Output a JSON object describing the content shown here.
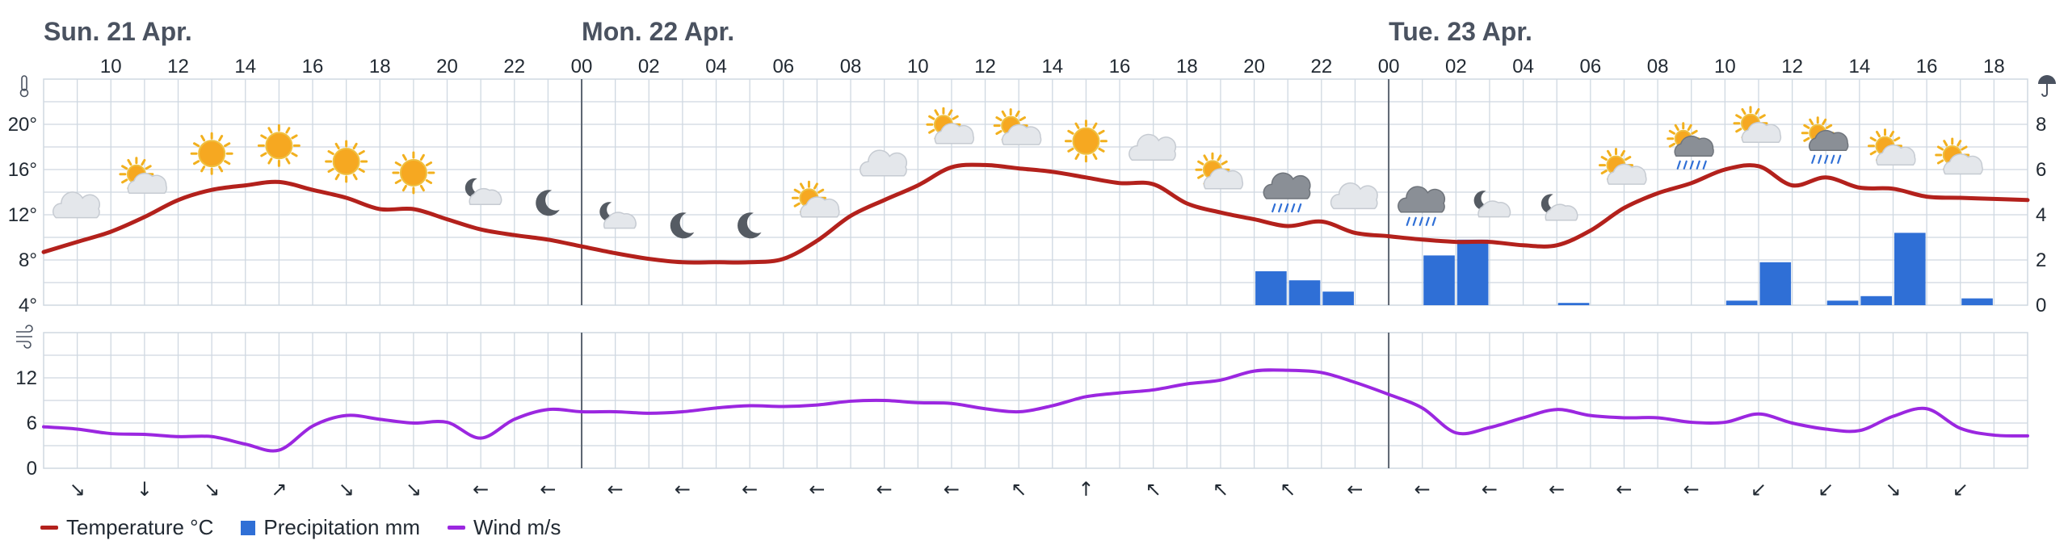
{
  "colors": {
    "temperature": "#b3211c",
    "precipitation": "#2f6fd6",
    "wind": "#9b27e0",
    "grid": "#cfd8e1",
    "day_divider": "#5b6470"
  },
  "legend": [
    {
      "label": "Temperature °C",
      "key": "temperature",
      "kind": "line"
    },
    {
      "label": "Precipitation mm",
      "key": "precipitation",
      "kind": "bar"
    },
    {
      "label": "Wind m/s",
      "key": "wind",
      "kind": "line"
    }
  ],
  "chart_data": [
    {
      "type": "line",
      "title": "",
      "day_labels": [
        {
          "label": "Sun. 21 Apr.",
          "hour": 8
        },
        {
          "label": "Mon. 22 Apr.",
          "hour": 24
        },
        {
          "label": "Tue. 23 Apr.",
          "hour": 48
        }
      ],
      "x_ticks": [
        "10",
        "12",
        "14",
        "16",
        "18",
        "20",
        "22",
        "00",
        "02",
        "04",
        "06",
        "08",
        "10",
        "12",
        "14",
        "16",
        "18",
        "20",
        "22",
        "00",
        "02",
        "04",
        "06",
        "08",
        "10",
        "12",
        "14",
        "16",
        "18"
      ],
      "x_range_hours": [
        8,
        67
      ],
      "temperature": {
        "name": "Temperature °C",
        "ylim": [
          4,
          24
        ],
        "yticks": [
          "4°",
          "8°",
          "12°",
          "16°",
          "20°"
        ],
        "x": [
          8,
          9,
          10,
          11,
          12,
          13,
          14,
          15,
          16,
          17,
          18,
          19,
          20,
          21,
          22,
          23,
          24,
          25,
          26,
          27,
          28,
          29,
          30,
          31,
          32,
          33,
          34,
          35,
          36,
          37,
          38,
          39,
          40,
          41,
          42,
          43,
          44,
          45,
          46,
          47,
          48,
          49,
          50,
          51,
          52,
          53,
          54,
          55,
          56,
          57,
          58,
          59,
          60,
          61,
          62,
          63,
          64,
          65,
          66,
          67
        ],
        "values": [
          8.7,
          9.6,
          10.5,
          11.8,
          13.3,
          14.2,
          14.6,
          14.9,
          14.2,
          13.5,
          12.5,
          12.5,
          11.6,
          10.7,
          10.2,
          9.8,
          9.2,
          8.6,
          8.1,
          7.8,
          7.8,
          7.8,
          8.1,
          9.7,
          11.9,
          13.3,
          14.6,
          16.2,
          16.4,
          16.1,
          15.8,
          15.3,
          14.8,
          14.7,
          13.0,
          12.2,
          11.6,
          11.0,
          11.4,
          10.4,
          10.1,
          9.8,
          9.6,
          9.6,
          9.3,
          9.3,
          10.6,
          12.6,
          13.9,
          14.8,
          16.0,
          16.3,
          14.6,
          15.3,
          14.4,
          14.3,
          13.6,
          13.5,
          13.4,
          13.3
        ]
      },
      "precipitation": {
        "name": "Precipitation mm",
        "ylim": [
          0,
          10
        ],
        "yticks": [
          "0",
          "2",
          "4",
          "6",
          "8"
        ],
        "hours": [
          44,
          45,
          46,
          49,
          50,
          53,
          58,
          59,
          61,
          62,
          63,
          65
        ],
        "values": [
          1.5,
          1.1,
          0.6,
          2.2,
          2.9,
          0.1,
          0.2,
          1.9,
          0.2,
          0.4,
          3.2,
          0.3
        ]
      },
      "weather_icons": [
        {
          "hour": 9,
          "icon": "cloud-icon"
        },
        {
          "hour": 11,
          "icon": "sun-cloud-icon"
        },
        {
          "hour": 13,
          "icon": "sun-icon"
        },
        {
          "hour": 15,
          "icon": "sun-icon"
        },
        {
          "hour": 17,
          "icon": "sun-icon"
        },
        {
          "hour": 19,
          "icon": "sun-icon"
        },
        {
          "hour": 21,
          "icon": "moon-cloud-icon"
        },
        {
          "hour": 23,
          "icon": "moon-icon"
        },
        {
          "hour": 25,
          "icon": "moon-cloud-icon"
        },
        {
          "hour": 27,
          "icon": "moon-icon"
        },
        {
          "hour": 29,
          "icon": "moon-icon"
        },
        {
          "hour": 31,
          "icon": "sun-cloud-icon"
        },
        {
          "hour": 33,
          "icon": "cloud-icon"
        },
        {
          "hour": 35,
          "icon": "sun-cloud-icon"
        },
        {
          "hour": 37,
          "icon": "sun-cloud-icon"
        },
        {
          "hour": 39,
          "icon": "sun-icon"
        },
        {
          "hour": 41,
          "icon": "cloud-icon"
        },
        {
          "hour": 43,
          "icon": "sun-cloud-icon"
        },
        {
          "hour": 45,
          "icon": "rain-cloud-icon"
        },
        {
          "hour": 47,
          "icon": "cloud-icon"
        },
        {
          "hour": 49,
          "icon": "rain-cloud-icon"
        },
        {
          "hour": 51,
          "icon": "moon-cloud-icon"
        },
        {
          "hour": 53,
          "icon": "moon-cloud-icon"
        },
        {
          "hour": 55,
          "icon": "sun-cloud-icon"
        },
        {
          "hour": 57,
          "icon": "sun-rain-cloud-icon"
        },
        {
          "hour": 59,
          "icon": "sun-cloud-icon"
        },
        {
          "hour": 61,
          "icon": "sun-rain-cloud-icon"
        },
        {
          "hour": 63,
          "icon": "sun-cloud-icon"
        },
        {
          "hour": 65,
          "icon": "sun-cloud-icon"
        }
      ]
    },
    {
      "type": "line",
      "title": "",
      "wind": {
        "name": "Wind m/s",
        "ylim": [
          0,
          18
        ],
        "yticks": [
          "0",
          "6",
          "12"
        ],
        "x": [
          8,
          9,
          10,
          11,
          12,
          13,
          14,
          15,
          16,
          17,
          18,
          19,
          20,
          21,
          22,
          23,
          24,
          25,
          26,
          27,
          28,
          29,
          30,
          31,
          32,
          33,
          34,
          35,
          36,
          37,
          38,
          39,
          40,
          41,
          42,
          43,
          44,
          45,
          46,
          47,
          48,
          49,
          50,
          51,
          52,
          53,
          54,
          55,
          56,
          57,
          58,
          59,
          60,
          61,
          62,
          63,
          64,
          65,
          66,
          67
        ],
        "values": [
          5.5,
          5.2,
          4.6,
          4.5,
          4.2,
          4.2,
          3.2,
          2.4,
          5.6,
          7.0,
          6.5,
          6.0,
          6.1,
          4.0,
          6.5,
          7.8,
          7.5,
          7.5,
          7.3,
          7.5,
          8.0,
          8.3,
          8.2,
          8.4,
          8.9,
          9.0,
          8.7,
          8.6,
          7.9,
          7.5,
          8.3,
          9.5,
          10.0,
          10.4,
          11.2,
          11.7,
          12.9,
          13.0,
          12.7,
          11.4,
          9.8,
          8.0,
          4.7,
          5.4,
          6.7,
          7.8,
          7.0,
          6.7,
          6.7,
          6.1,
          6.1,
          7.2,
          6.0,
          5.2,
          5.0,
          6.9,
          7.9,
          5.3,
          4.4,
          4.3
        ]
      },
      "wind_directions": [
        {
          "hour": 9,
          "arrow": "↘"
        },
        {
          "hour": 11,
          "arrow": "↓"
        },
        {
          "hour": 13,
          "arrow": "↘"
        },
        {
          "hour": 15,
          "arrow": "↗"
        },
        {
          "hour": 17,
          "arrow": "↘"
        },
        {
          "hour": 19,
          "arrow": "↘"
        },
        {
          "hour": 21,
          "arrow": "←"
        },
        {
          "hour": 23,
          "arrow": "←"
        },
        {
          "hour": 25,
          "arrow": "←"
        },
        {
          "hour": 27,
          "arrow": "←"
        },
        {
          "hour": 29,
          "arrow": "←"
        },
        {
          "hour": 31,
          "arrow": "←"
        },
        {
          "hour": 33,
          "arrow": "←"
        },
        {
          "hour": 35,
          "arrow": "←"
        },
        {
          "hour": 37,
          "arrow": "↖"
        },
        {
          "hour": 39,
          "arrow": "↑"
        },
        {
          "hour": 41,
          "arrow": "↖"
        },
        {
          "hour": 43,
          "arrow": "↖"
        },
        {
          "hour": 45,
          "arrow": "↖"
        },
        {
          "hour": 47,
          "arrow": "←"
        },
        {
          "hour": 49,
          "arrow": "←"
        },
        {
          "hour": 51,
          "arrow": "←"
        },
        {
          "hour": 53,
          "arrow": "←"
        },
        {
          "hour": 55,
          "arrow": "←"
        },
        {
          "hour": 57,
          "arrow": "←"
        },
        {
          "hour": 59,
          "arrow": "↙"
        },
        {
          "hour": 61,
          "arrow": "↙"
        },
        {
          "hour": 63,
          "arrow": "↘"
        },
        {
          "hour": 65,
          "arrow": "↙"
        }
      ]
    }
  ]
}
